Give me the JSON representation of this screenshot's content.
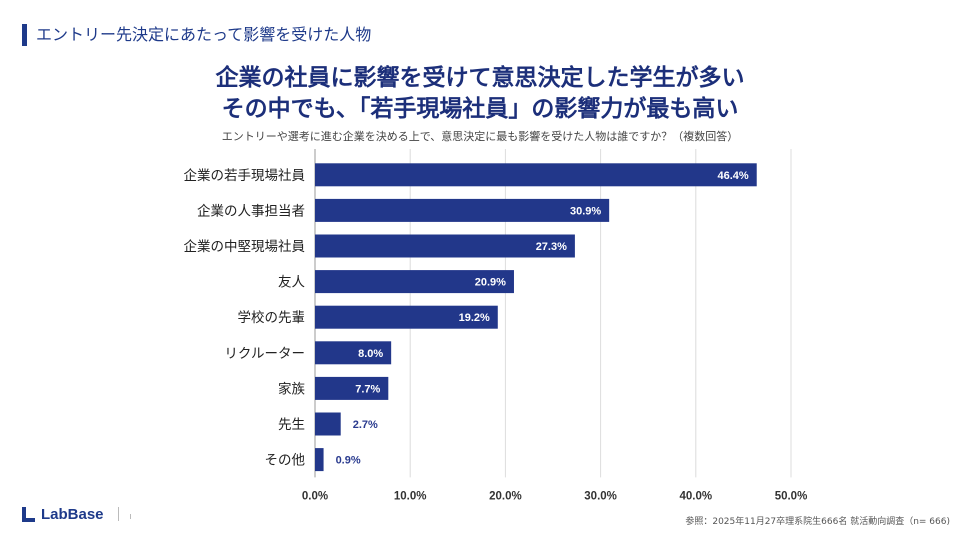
{
  "section_title": "エントリー先決定にあたって影響を受けた人物",
  "headline": {
    "line1": "企業の社員に影響を受けて意思決定した学生が多い",
    "line2": "その中でも、「若手現場社員」の影響力が最も高い"
  },
  "footer": {
    "brand": "LabBase",
    "source": "参照：2025年11月27卒理系院生666名 就活動向調査（n= 666)"
  },
  "colors": {
    "bar": "#22378a",
    "label_inside": "#ffffff",
    "label_outside": "#2a3b8f",
    "grid": "#dcdcdc"
  },
  "chart_data": {
    "type": "bar",
    "orientation": "horizontal",
    "title": "エントリーや選考に進む企業を決める上で、意思決定に最も影響を受けた人物は誰ですか？（複数回答）",
    "categories": [
      "企業の若手現場社員",
      "企業の人事担当者",
      "企業の中堅現場社員",
      "友人",
      "学校の先輩",
      "リクルーター",
      "家族",
      "先生",
      "その他"
    ],
    "values": [
      46.4,
      30.9,
      27.3,
      20.9,
      19.2,
      8.0,
      7.7,
      2.7,
      0.9
    ],
    "value_labels": [
      "46.4%",
      "30.9%",
      "27.3%",
      "20.9%",
      "19.2%",
      "8.0%",
      "7.7%",
      "2.7%",
      "0.9%"
    ],
    "xlim": [
      0,
      50
    ],
    "xticks": [
      "0.0%",
      "10.0%",
      "20.0%",
      "30.0%",
      "40.0%",
      "50.0%"
    ],
    "grid": true
  }
}
